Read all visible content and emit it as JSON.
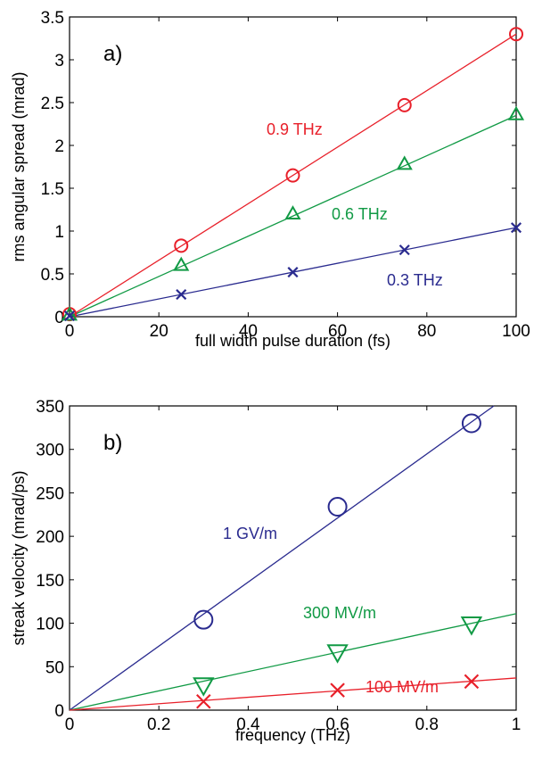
{
  "chart_data": [
    {
      "type": "line",
      "panel_label": "a)",
      "xlabel": "full width pulse duration (fs)",
      "ylabel": "rms angular spread (mrad)",
      "xlim": [
        0,
        100
      ],
      "ylim": [
        0,
        3.5
      ],
      "xticks": [
        0,
        20,
        40,
        60,
        80,
        100
      ],
      "xtick_labels": [
        "0",
        "20",
        "40",
        "60",
        "80",
        "100"
      ],
      "yticks": [
        0,
        0.5,
        1,
        1.5,
        2,
        2.5,
        3,
        3.5
      ],
      "ytick_labels": [
        "0",
        "0.5",
        "1",
        "1.5",
        "2",
        "2.5",
        "3",
        "3.5"
      ],
      "grid": false,
      "series": [
        {
          "name": "0.9 THz",
          "color": "#e8202a",
          "marker": "circle",
          "points": [
            [
              0,
              0.03
            ],
            [
              25,
              0.83
            ],
            [
              50,
              1.65
            ],
            [
              75,
              2.47
            ],
            [
              100,
              3.3
            ]
          ],
          "fit": [
            [
              0,
              0.0
            ],
            [
              100,
              3.3
            ]
          ]
        },
        {
          "name": "0.6 THz",
          "color": "#119a45",
          "marker": "triangle-up",
          "points": [
            [
              0,
              0.02
            ],
            [
              25,
              0.6
            ],
            [
              50,
              1.2
            ],
            [
              75,
              1.78
            ],
            [
              100,
              2.36
            ]
          ],
          "fit": [
            [
              0,
              0.0
            ],
            [
              100,
              2.35
            ]
          ]
        },
        {
          "name": "0.3 THz",
          "color": "#2a2b8f",
          "marker": "x",
          "points": [
            [
              0,
              0.01
            ],
            [
              25,
              0.26
            ],
            [
              50,
              0.52
            ],
            [
              75,
              0.78
            ],
            [
              100,
              1.04
            ]
          ],
          "fit": [
            [
              0,
              0.0
            ],
            [
              100,
              1.04
            ]
          ]
        }
      ]
    },
    {
      "type": "line",
      "panel_label": "b)",
      "xlabel": "frequency (THz)",
      "ylabel": "streak velocity (mrad/ps)",
      "xlim": [
        0,
        1
      ],
      "ylim": [
        0,
        350
      ],
      "xticks": [
        0,
        0.2,
        0.4,
        0.6,
        0.8,
        1
      ],
      "xtick_labels": [
        "0",
        "0.2",
        "0.4",
        "0.6",
        "0.8",
        "1"
      ],
      "yticks": [
        0,
        50,
        100,
        150,
        200,
        250,
        300,
        350
      ],
      "ytick_labels": [
        "0",
        "50",
        "100",
        "150",
        "200",
        "250",
        "300",
        "350"
      ],
      "grid": false,
      "series": [
        {
          "name": "1 GV/m",
          "color": "#2a2b8f",
          "marker": "circle",
          "points": [
            [
              0.3,
              104
            ],
            [
              0.6,
              234
            ],
            [
              0.9,
              330
            ]
          ],
          "fit": [
            [
              0,
              0
            ],
            [
              0.95,
              350
            ]
          ]
        },
        {
          "name": "300 MV/m",
          "color": "#119a45",
          "marker": "triangle-down",
          "points": [
            [
              0.3,
              29
            ],
            [
              0.6,
              67
            ],
            [
              0.9,
              99
            ]
          ],
          "fit": [
            [
              0,
              0
            ],
            [
              1,
              111
            ]
          ]
        },
        {
          "name": "100 MV/m",
          "color": "#e8202a",
          "marker": "x",
          "points": [
            [
              0.3,
              10
            ],
            [
              0.6,
              23
            ],
            [
              0.9,
              33
            ]
          ],
          "fit": [
            [
              0,
              0
            ],
            [
              1,
              37
            ]
          ]
        }
      ]
    }
  ]
}
